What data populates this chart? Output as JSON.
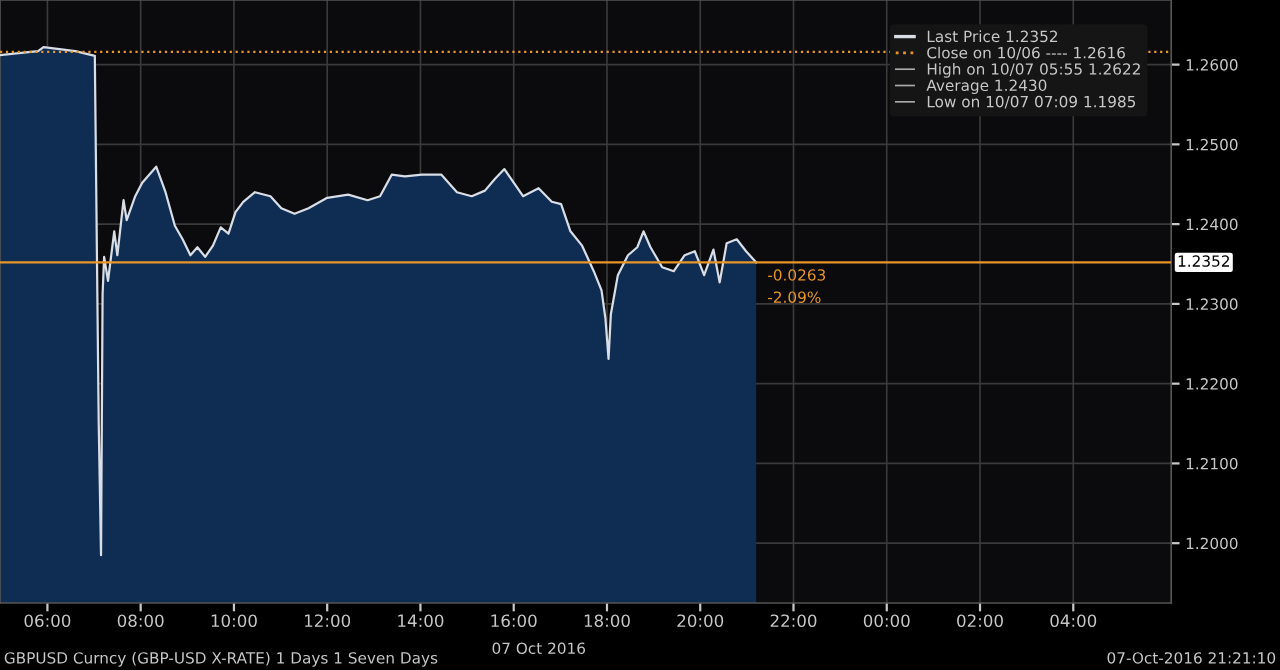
{
  "chart_data": {
    "type": "area",
    "xlabel": "07 Oct 2016",
    "x": [
      "2016-10-07T04:59",
      "2016-10-07T05:48",
      "2016-10-07T05:55",
      "2016-10-07T06:36",
      "2016-10-07T07:01",
      "2016-10-07T07:06",
      "2016-10-07T07:09",
      "2016-10-07T07:11",
      "2016-10-07T07:13",
      "2016-10-07T07:18",
      "2016-10-07T07:26",
      "2016-10-07T07:30",
      "2016-10-07T07:38",
      "2016-10-07T07:42",
      "2016-10-07T07:53",
      "2016-10-07T08:02",
      "2016-10-07T08:20",
      "2016-10-07T08:32",
      "2016-10-07T08:44",
      "2016-10-07T08:54",
      "2016-10-07T09:04",
      "2016-10-07T09:13",
      "2016-10-07T09:23",
      "2016-10-07T09:33",
      "2016-10-07T09:43",
      "2016-10-07T09:53",
      "2016-10-07T10:02",
      "2016-10-07T10:12",
      "2016-10-07T10:27",
      "2016-10-07T10:47",
      "2016-10-07T11:01",
      "2016-10-07T11:18",
      "2016-10-07T11:36",
      "2016-10-07T12:00",
      "2016-10-07T12:27",
      "2016-10-07T12:52",
      "2016-10-07T13:08",
      "2016-10-07T13:23",
      "2016-10-07T13:40",
      "2016-10-07T14:02",
      "2016-10-07T14:27",
      "2016-10-07T14:47",
      "2016-10-07T15:06",
      "2016-10-07T15:23",
      "2016-10-07T15:36",
      "2016-10-07T15:48",
      "2016-10-07T16:00",
      "2016-10-07T16:12",
      "2016-10-07T16:32",
      "2016-10-07T16:49",
      "2016-10-07T17:01",
      "2016-10-07T17:13",
      "2016-10-07T17:28",
      "2016-10-07T17:43",
      "2016-10-07T17:53",
      "2016-10-07T17:58",
      "2016-10-07T18:02",
      "2016-10-07T18:05",
      "2016-10-07T18:14",
      "2016-10-07T18:27",
      "2016-10-07T18:39",
      "2016-10-07T18:47",
      "2016-10-07T18:56",
      "2016-10-07T19:11",
      "2016-10-07T19:26",
      "2016-10-07T19:40",
      "2016-10-07T19:53",
      "2016-10-07T20:05",
      "2016-10-07T20:17",
      "2016-10-07T20:25",
      "2016-10-07T20:34",
      "2016-10-07T20:47",
      "2016-10-07T20:59",
      "2016-10-07T21:12"
    ],
    "series": [
      {
        "name": "Last Price 1.2352",
        "color": "#d8dde6",
        "values": [
          1.2612,
          1.2617,
          1.2622,
          1.2617,
          1.2611,
          1.2152,
          1.1985,
          1.2312,
          1.2359,
          1.2329,
          1.2391,
          1.2361,
          1.243,
          1.2405,
          1.2435,
          1.2452,
          1.2472,
          1.244,
          1.2398,
          1.2381,
          1.2361,
          1.2371,
          1.2359,
          1.2373,
          1.2396,
          1.2388,
          1.2415,
          1.2428,
          1.244,
          1.2435,
          1.242,
          1.2413,
          1.242,
          1.2433,
          1.2437,
          1.243,
          1.2435,
          1.2462,
          1.246,
          1.2462,
          1.2462,
          1.244,
          1.2435,
          1.2442,
          1.2457,
          1.2469,
          1.2452,
          1.2435,
          1.2445,
          1.2428,
          1.2425,
          1.2391,
          1.2373,
          1.2341,
          1.2317,
          1.2282,
          1.2231,
          1.2287,
          1.2336,
          1.2361,
          1.2371,
          1.2391,
          1.2371,
          1.2346,
          1.2341,
          1.2361,
          1.2366,
          1.2336,
          1.2368,
          1.2327,
          1.2376,
          1.2381,
          1.2366,
          1.2352
        ]
      }
    ],
    "xlim": [
      "2016-10-07T04:59",
      "2016-10-08T06:06"
    ],
    "xticks": [
      {
        "value": "2016-10-07T06:00",
        "label": "06:00"
      },
      {
        "value": "2016-10-07T08:00",
        "label": "08:00"
      },
      {
        "value": "2016-10-07T10:00",
        "label": "10:00"
      },
      {
        "value": "2016-10-07T12:00",
        "label": "12:00"
      },
      {
        "value": "2016-10-07T14:00",
        "label": "14:00"
      },
      {
        "value": "2016-10-07T16:00",
        "label": "16:00"
      },
      {
        "value": "2016-10-07T18:00",
        "label": "18:00"
      },
      {
        "value": "2016-10-07T20:00",
        "label": "20:00"
      },
      {
        "value": "2016-10-07T22:00",
        "label": "22:00"
      },
      {
        "value": "2016-10-08T00:00",
        "label": "00:00"
      },
      {
        "value": "2016-10-08T02:00",
        "label": "02:00"
      },
      {
        "value": "2016-10-08T04:00",
        "label": "04:00"
      }
    ],
    "ylim": [
      1.1925,
      1.2681
    ],
    "yticks": [
      {
        "value": 1.2,
        "label": "1.2000"
      },
      {
        "value": 1.21,
        "label": "1.2100"
      },
      {
        "value": 1.22,
        "label": "1.2200"
      },
      {
        "value": 1.23,
        "label": "1.2300"
      },
      {
        "value": 1.24,
        "label": "1.2400"
      },
      {
        "value": 1.25,
        "label": "1.2500"
      },
      {
        "value": 1.26,
        "label": "1.2600"
      }
    ],
    "ref_lines": [
      {
        "axis": "y",
        "value": 1.2616,
        "label": "Close on 10/06 ---- 1.2616",
        "color": "#e8962a",
        "line_style": "dotted"
      },
      {
        "axis": "y",
        "value": 1.2352,
        "label": "1.2352",
        "color": "#e8962a",
        "line_style": "solid"
      }
    ],
    "annotations": [
      {
        "text": "-0.0263",
        "x": "2016-10-07T21:12",
        "y": 1.2352
      },
      {
        "text": "-2.09%",
        "x": "2016-10-07T21:12",
        "y": 1.2352
      },
      "High on 10/07 05:55 1.2622",
      "Average 1.2430",
      "Low on 10/07 07:09 1.1985",
      "GBPUSD Curncy (GBP-USD X-RATE) 1 Days 1 Seven Days",
      "07-Oct-2016 21:21:10"
    ],
    "grid": true,
    "legend": "top right"
  }
}
